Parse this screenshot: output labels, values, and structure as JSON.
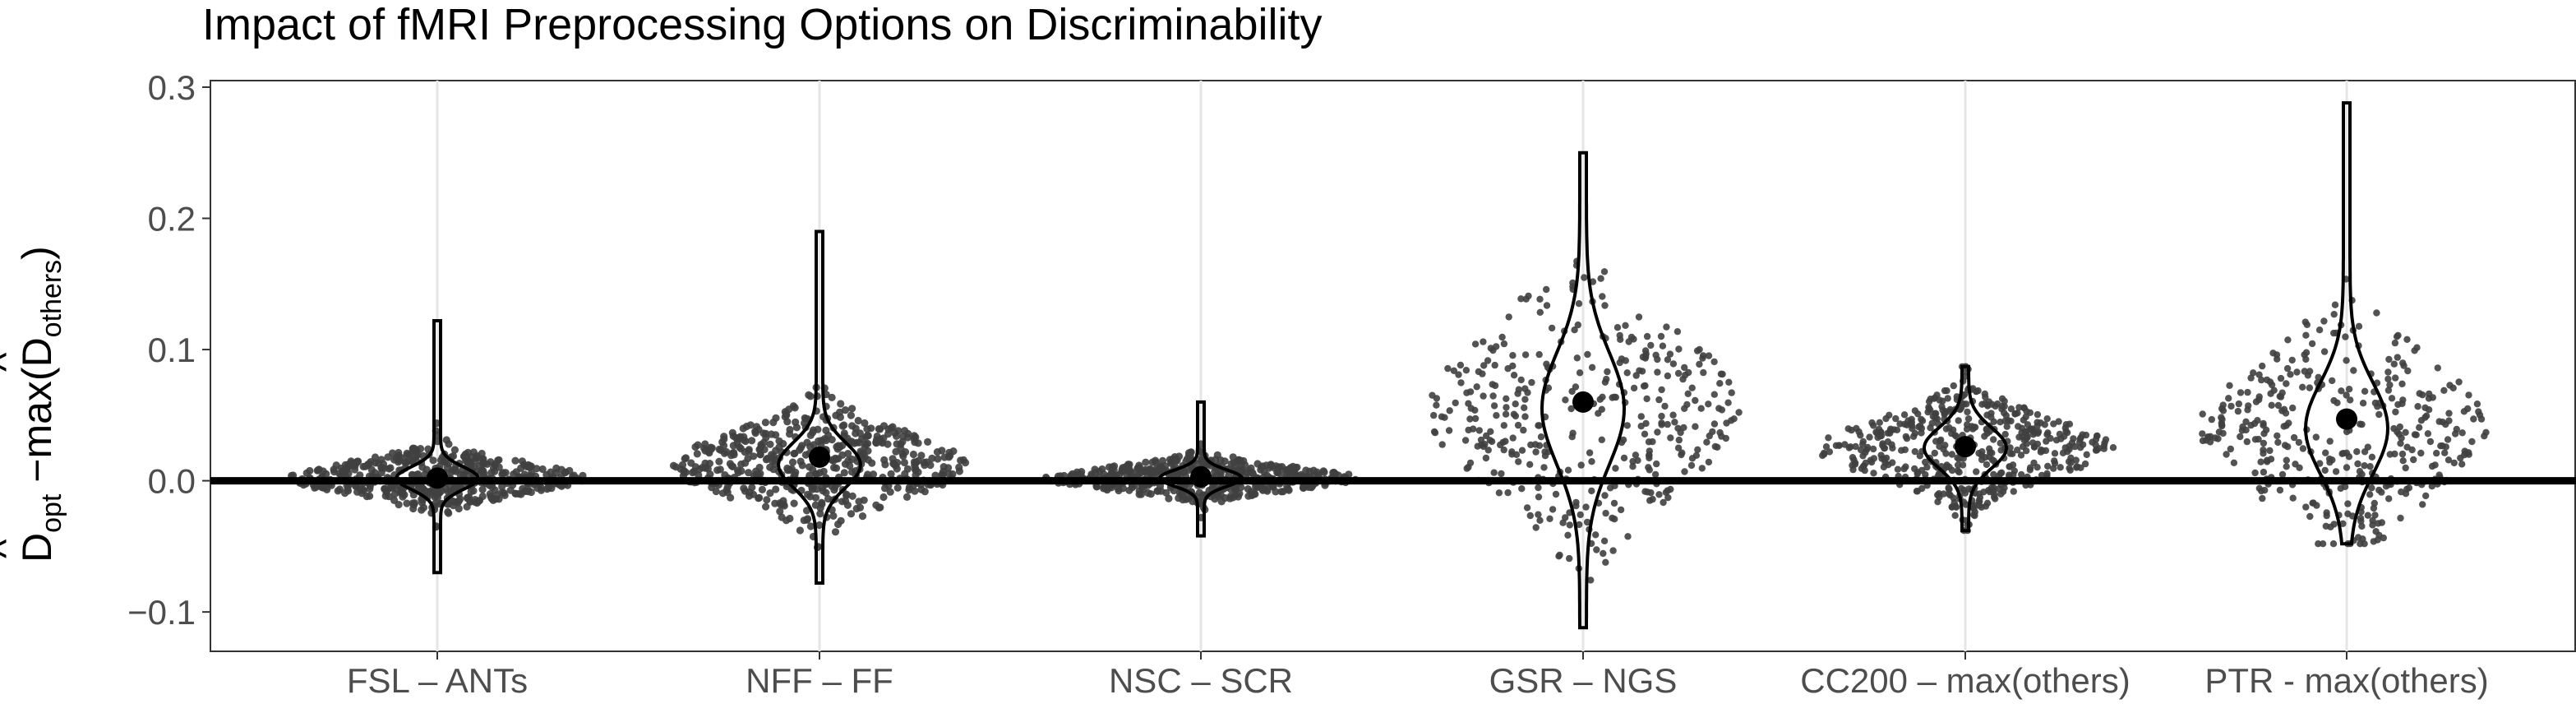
{
  "chart_data": {
    "type": "violin-dotplot",
    "title": "Impact of fMRI Preprocessing Options on Discriminability",
    "ylabel": {
      "lead": "D",
      "lead_sub": "opt",
      "mid": " −max(",
      "inner": "D",
      "inner_sub": "others",
      "tail": ")",
      "hat": "^"
    },
    "ylim": [
      -0.13,
      0.305
    ],
    "yticks": [
      -0.1,
      0.0,
      0.1,
      0.2,
      0.3
    ],
    "ytick_labels": [
      "−0.1",
      "0.0",
      "0.1",
      "0.2",
      "0.3"
    ],
    "grid": "vertical major lines at categories",
    "reference_line_y": 0.0,
    "categories": [
      "FSL – ANTs",
      "NFF – FF",
      "NSC – SCR",
      "GSR – NGS",
      "CC200 – max(others)",
      "PTR - max(others)"
    ],
    "groups": [
      {
        "category": "FSL – ANTs",
        "mean": 0.002,
        "median": 0.002,
        "min": -0.07,
        "max": 0.122,
        "spread_sd": 0.011
      },
      {
        "category": "NFF – FF",
        "mean": 0.018,
        "median": 0.012,
        "min": -0.078,
        "max": 0.19,
        "spread_sd": 0.022
      },
      {
        "category": "NSC – SCR",
        "mean": 0.003,
        "median": 0.002,
        "min": -0.042,
        "max": 0.06,
        "spread_sd": 0.008
      },
      {
        "category": "GSR – NGS",
        "mean": 0.06,
        "median": 0.055,
        "min": -0.112,
        "max": 0.25,
        "spread_sd": 0.055
      },
      {
        "category": "CC200 – max(others)",
        "mean": 0.026,
        "median": 0.025,
        "min": -0.038,
        "max": 0.087,
        "spread_sd": 0.02
      },
      {
        "category": "PTR - max(others)",
        "mean": 0.047,
        "median": 0.04,
        "min": -0.048,
        "max": 0.288,
        "spread_sd": 0.045
      }
    ]
  }
}
